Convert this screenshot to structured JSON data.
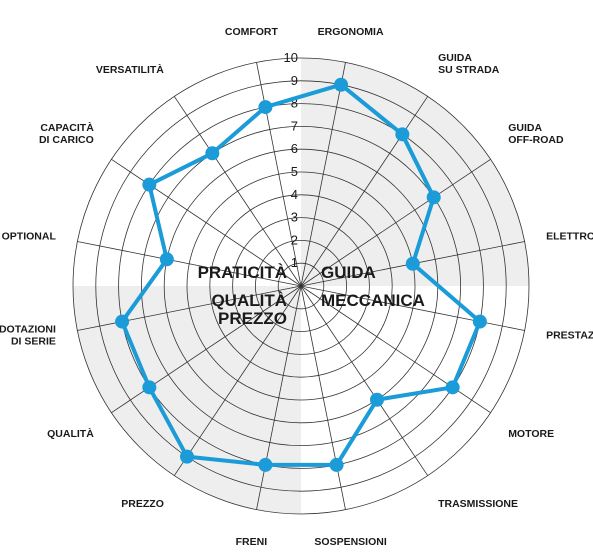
{
  "chart_data": {
    "type": "radar",
    "axes": [
      [
        "ERGONOMIA"
      ],
      [
        "GUIDA",
        "SU STRADA"
      ],
      [
        "GUIDA",
        "OFF-ROAD"
      ],
      [
        "ELETTRONICA"
      ],
      [
        "PRESTAZIONI"
      ],
      [
        "MOTORE"
      ],
      [
        "TRASMISSIONE"
      ],
      [
        "SOSPENSIONI"
      ],
      [
        "FRENI"
      ],
      [
        "PREZZO"
      ],
      [
        "QUALITÀ"
      ],
      [
        "DOTAZIONI",
        "DI SERIE"
      ],
      [
        "OPTIONAL"
      ],
      [
        "CAPACITÀ",
        "DI CARICO"
      ],
      [
        "VERSATILITÀ"
      ],
      [
        "COMFORT"
      ]
    ],
    "values": [
      9,
      8,
      7,
      5,
      8,
      8,
      6,
      8,
      8,
      9,
      8,
      8,
      6,
      8,
      7,
      8
    ],
    "rmin": 0,
    "rmax": 10,
    "ticks": [
      "1",
      "2",
      "3",
      "4",
      "5",
      "6",
      "7",
      "8",
      "9",
      "10"
    ],
    "groups": [
      {
        "lines": [
          "PRATICITÀ"
        ],
        "quadrant": "top-left"
      },
      {
        "lines": [
          "GUIDA"
        ],
        "quadrant": "top-right"
      },
      {
        "lines": [
          "MECCANICA"
        ],
        "quadrant": "bottom-right"
      },
      {
        "lines": [
          "QUALITÀ",
          "PREZZO"
        ],
        "quadrant": "bottom-left"
      }
    ],
    "colors": {
      "series": "#1b9bd7",
      "shade": "#eeeeee",
      "grid": "#333333"
    }
  }
}
